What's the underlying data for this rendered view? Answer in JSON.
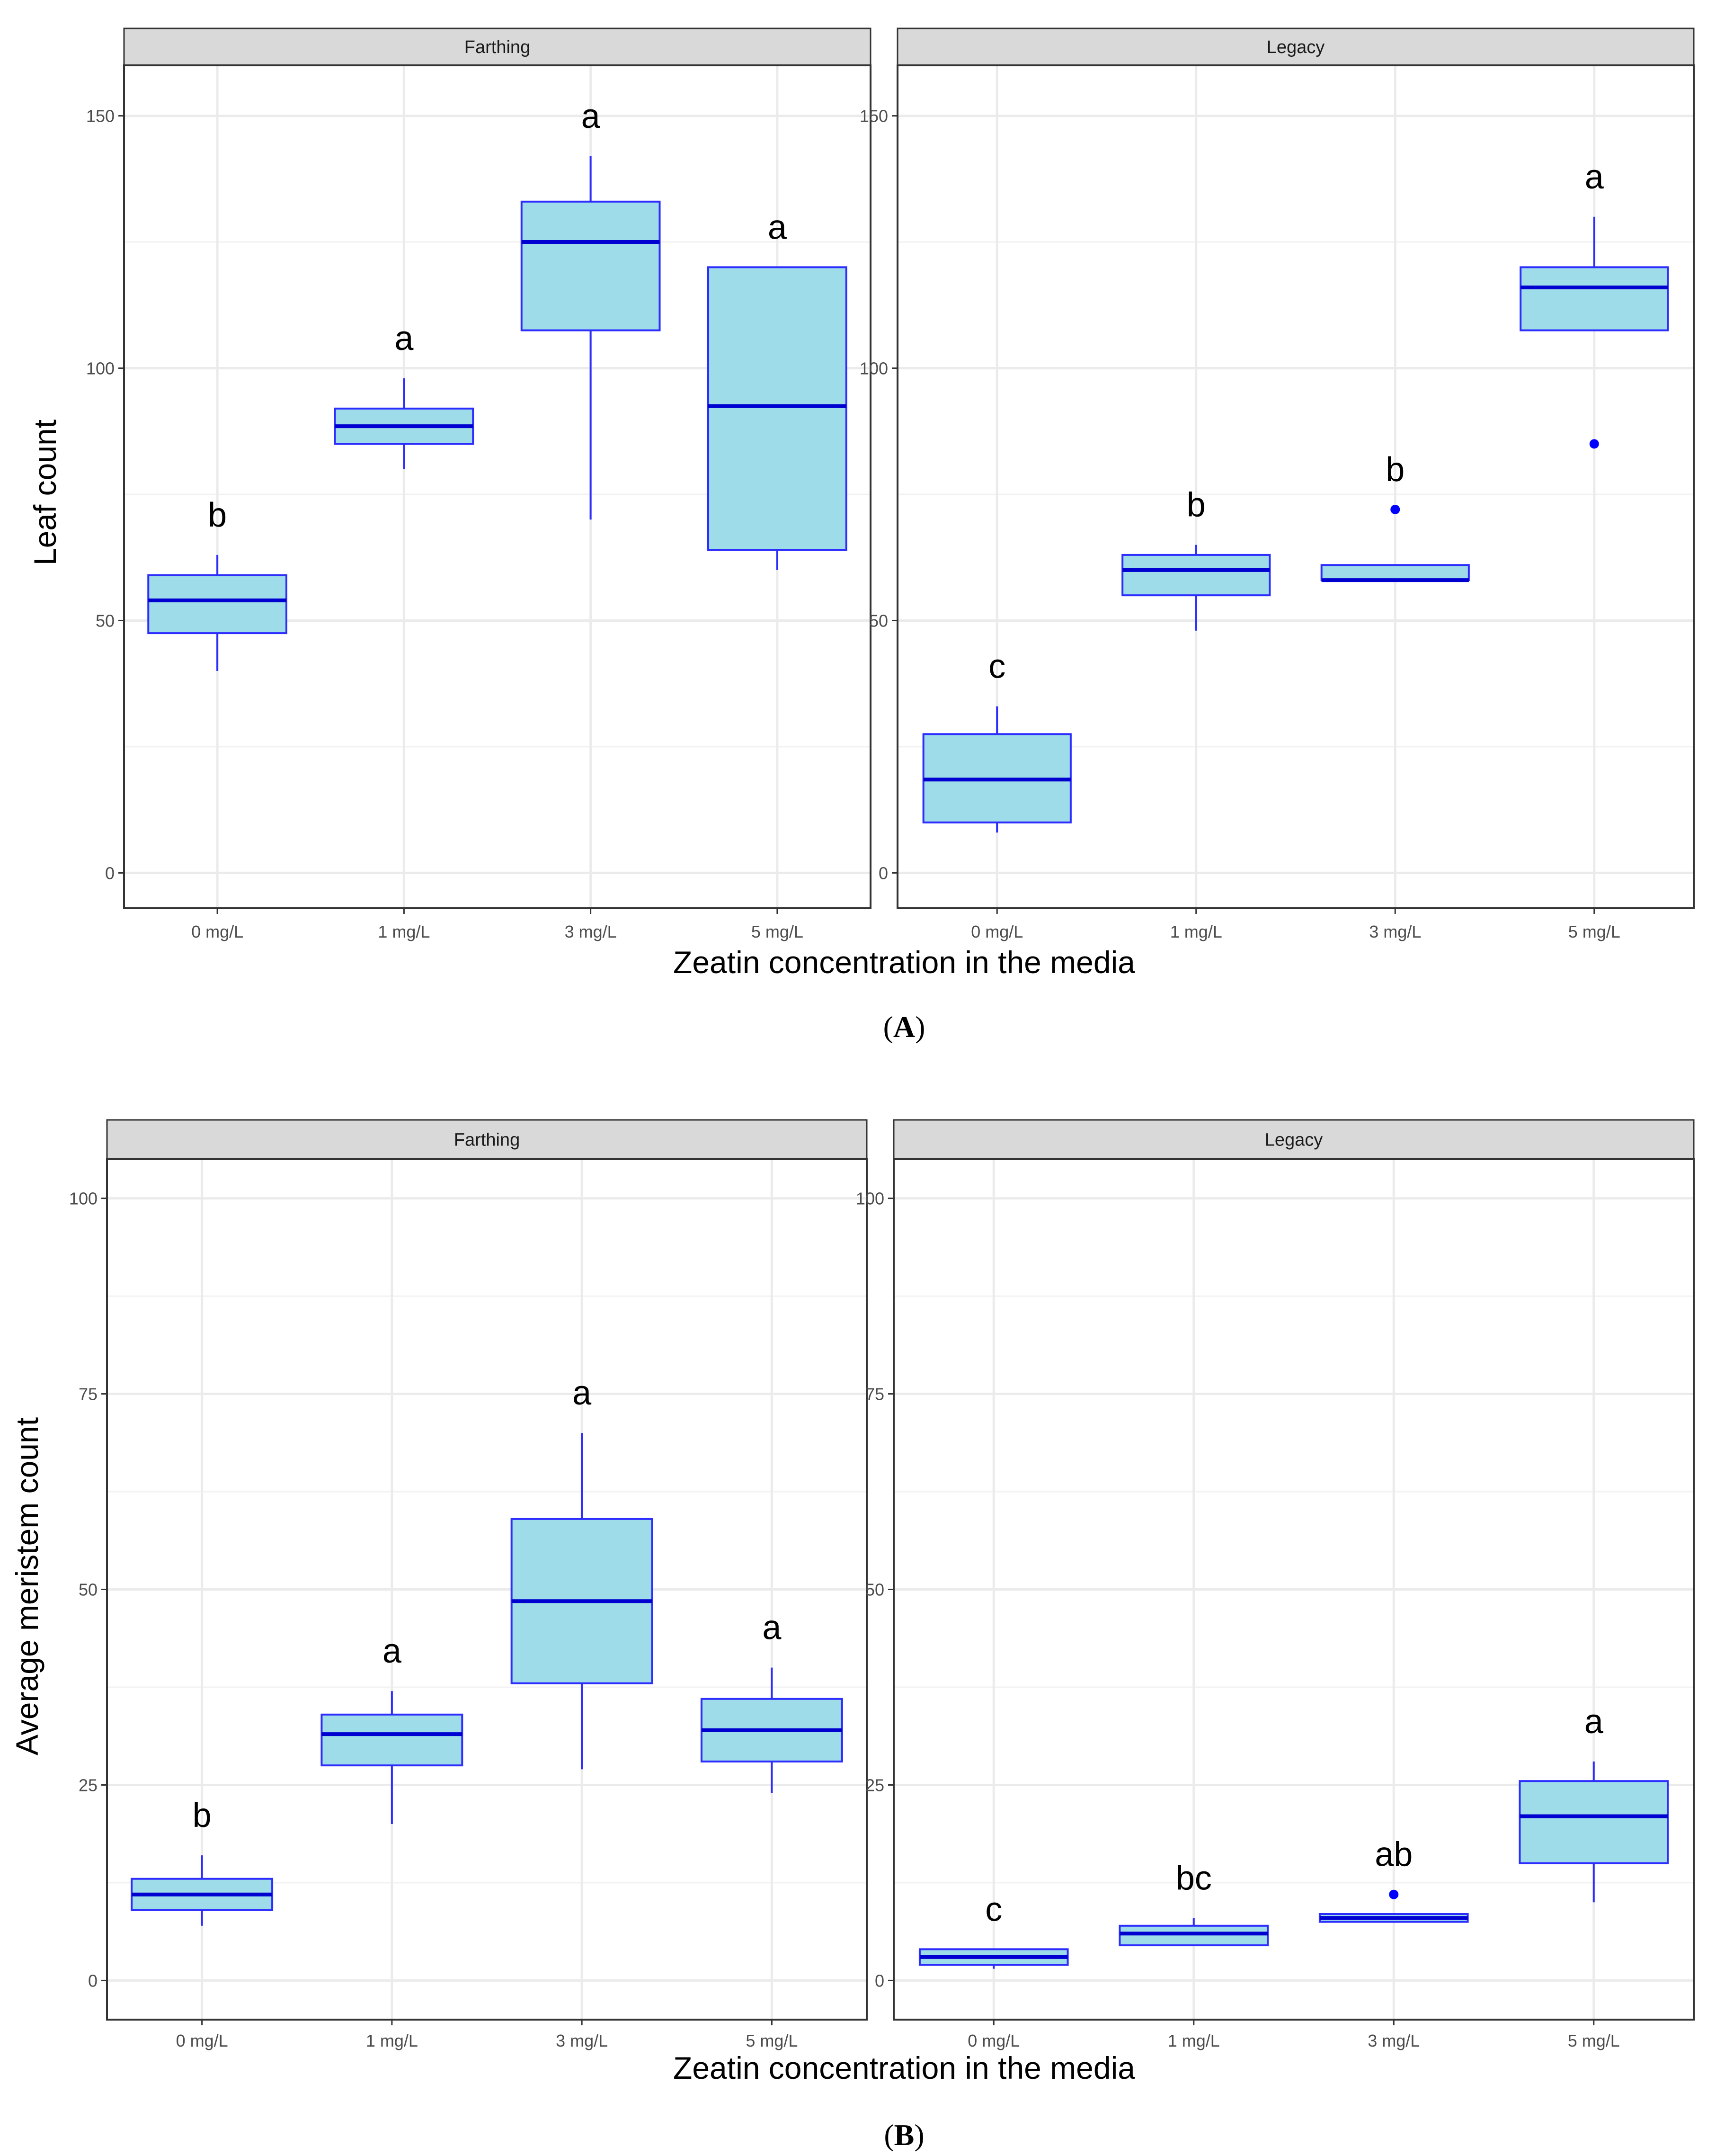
{
  "colors": {
    "box_fill": "#9ddce8",
    "box_stroke": "#2d2dff",
    "median": "#0000d0",
    "outlier": "#0000ff",
    "strip_fill": "#d9d9d9",
    "grid": "#ebebeb",
    "panel_border": "#333333"
  },
  "figure_labels": [
    "A",
    "B"
  ],
  "chart_data": [
    {
      "type": "boxplot",
      "figure": "A",
      "ylabel": "Leaf count",
      "xlabel": "Zeatin concentration in the media",
      "ylim": [
        -7,
        160
      ],
      "yticks": [
        0,
        50,
        100,
        150
      ],
      "ytick_labels": [
        "0",
        "50",
        "100",
        "150"
      ],
      "categories": [
        "0 mg/L",
        "1 mg/L",
        "3 mg/L",
        "5 mg/L"
      ],
      "facets": [
        {
          "name": "Farthing",
          "boxes": [
            {
              "category": "0 mg/L",
              "min": 40,
              "q1": 47.5,
              "median": 54,
              "q3": 59,
              "max": 63,
              "outliers": [],
              "letter": "b"
            },
            {
              "category": "1 mg/L",
              "min": 80,
              "q1": 85,
              "median": 88.5,
              "q3": 92,
              "max": 98,
              "outliers": [],
              "letter": "a"
            },
            {
              "category": "3 mg/L",
              "min": 70,
              "q1": 107.5,
              "median": 125,
              "q3": 133,
              "max": 142,
              "outliers": [],
              "letter": "a"
            },
            {
              "category": "5 mg/L",
              "min": 60,
              "q1": 64,
              "median": 92.5,
              "q3": 120,
              "max": 120,
              "outliers": [],
              "letter": "a"
            }
          ]
        },
        {
          "name": "Legacy",
          "boxes": [
            {
              "category": "0 mg/L",
              "min": 8,
              "q1": 10,
              "median": 18.5,
              "q3": 27.5,
              "max": 33,
              "outliers": [],
              "letter": "c"
            },
            {
              "category": "1 mg/L",
              "min": 48,
              "q1": 55,
              "median": 60,
              "q3": 63,
              "max": 65,
              "outliers": [],
              "letter": "b"
            },
            {
              "category": "3 mg/L",
              "min": 58,
              "q1": 58,
              "median": 58,
              "q3": 61,
              "max": 61,
              "outliers": [
                72
              ],
              "letter": "b"
            },
            {
              "category": "5 mg/L",
              "min": 107.5,
              "q1": 107.5,
              "median": 116,
              "q3": 120,
              "max": 130,
              "outliers": [
                85
              ],
              "letter": "a"
            }
          ]
        }
      ]
    },
    {
      "type": "boxplot",
      "figure": "B",
      "ylabel": "Average meristem count",
      "xlabel": "Zeatin concentration in the media",
      "ylim": [
        -5,
        105
      ],
      "yticks": [
        0,
        25,
        50,
        75,
        100
      ],
      "ytick_labels": [
        "0",
        "25",
        "50",
        "75",
        "100"
      ],
      "categories": [
        "0 mg/L",
        "1 mg/L",
        "3 mg/L",
        "5 mg/L"
      ],
      "facets": [
        {
          "name": "Farthing",
          "boxes": [
            {
              "category": "0 mg/L",
              "min": 7,
              "q1": 9,
              "median": 11,
              "q3": 13,
              "max": 16,
              "outliers": [],
              "letter": "b"
            },
            {
              "category": "1 mg/L",
              "min": 20,
              "q1": 27.5,
              "median": 31.5,
              "q3": 34,
              "max": 37,
              "outliers": [],
              "letter": "a"
            },
            {
              "category": "3 mg/L",
              "min": 27,
              "q1": 38,
              "median": 48.5,
              "q3": 59,
              "max": 70,
              "outliers": [],
              "letter": "a"
            },
            {
              "category": "5 mg/L",
              "min": 24,
              "q1": 28,
              "median": 32,
              "q3": 36,
              "max": 40,
              "outliers": [],
              "letter": "a"
            }
          ]
        },
        {
          "name": "Legacy",
          "boxes": [
            {
              "category": "0 mg/L",
              "min": 1.5,
              "q1": 2,
              "median": 3,
              "q3": 4,
              "max": 4,
              "outliers": [],
              "letter": "c"
            },
            {
              "category": "1 mg/L",
              "min": 4.5,
              "q1": 4.5,
              "median": 6,
              "q3": 7,
              "max": 8,
              "outliers": [],
              "letter": "bc"
            },
            {
              "category": "3 mg/L",
              "min": 7.5,
              "q1": 7.5,
              "median": 8,
              "q3": 8.5,
              "max": 8.5,
              "outliers": [
                11
              ],
              "letter": "ab"
            },
            {
              "category": "5 mg/L",
              "min": 10,
              "q1": 15,
              "median": 21,
              "q3": 25.5,
              "max": 28,
              "outliers": [],
              "letter": "a"
            }
          ]
        }
      ]
    }
  ]
}
